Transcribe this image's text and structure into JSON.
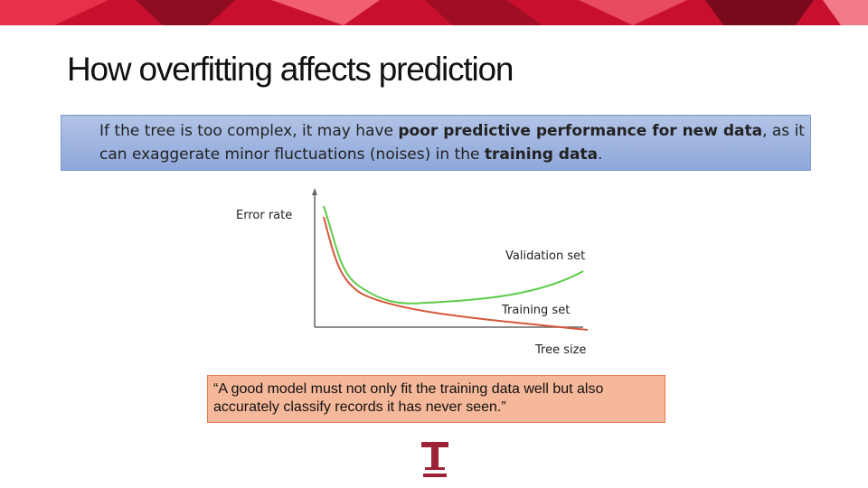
{
  "title": "How overfitting affects prediction",
  "callout": {
    "parts": [
      "If the tree is too complex, it may have ",
      "poor predictive performance for new data",
      ", as it can exaggerate minor fluctuations (noises) in the ",
      "training data",
      "."
    ]
  },
  "figure": {
    "y_label": "Error rate",
    "x_label": "Tree size",
    "curves": [
      {
        "label": "Validation set"
      },
      {
        "label": "Training set"
      }
    ]
  },
  "quote": "“A good model must not only fit the training data well but also accurately classify records it has never seen.”"
}
